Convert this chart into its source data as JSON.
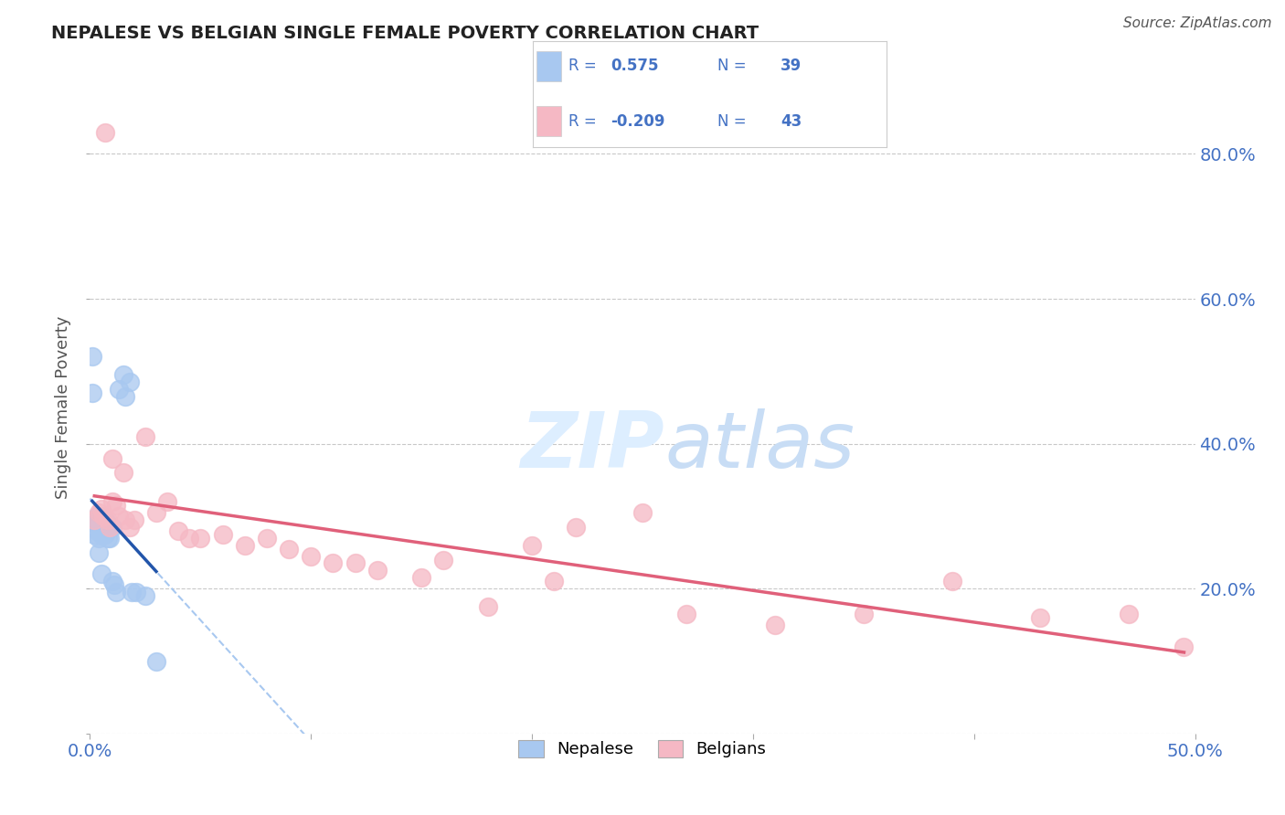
{
  "title": "NEPALESE VS BELGIAN SINGLE FEMALE POVERTY CORRELATION CHART",
  "source": "Source: ZipAtlas.com",
  "ylabel": "Single Female Poverty",
  "xlim": [
    0.0,
    0.5
  ],
  "ylim": [
    0.0,
    0.9
  ],
  "xtick_positions": [
    0.0,
    0.1,
    0.2,
    0.3,
    0.4,
    0.5
  ],
  "xtick_labels": [
    "0.0%",
    "",
    "",
    "",
    "",
    "50.0%"
  ],
  "right_ytick_positions": [
    0.2,
    0.4,
    0.6,
    0.8
  ],
  "right_ytick_labels": [
    "20.0%",
    "40.0%",
    "60.0%",
    "80.0%"
  ],
  "blue_R": 0.575,
  "blue_N": 39,
  "pink_R": -0.209,
  "pink_N": 43,
  "nepalese_color": "#a8c8f0",
  "belgian_color": "#f5b8c4",
  "blue_line_color": "#2255aa",
  "pink_line_color": "#e0607a",
  "blue_dashed_color": "#a8c8f0",
  "legend_text_color": "#4472c4",
  "watermark_color": "#ddeeff",
  "background_color": "#ffffff",
  "nepalese_x": [
    0.001,
    0.001,
    0.002,
    0.002,
    0.003,
    0.003,
    0.003,
    0.003,
    0.004,
    0.004,
    0.004,
    0.004,
    0.005,
    0.005,
    0.005,
    0.005,
    0.005,
    0.006,
    0.006,
    0.007,
    0.007,
    0.007,
    0.008,
    0.008,
    0.008,
    0.009,
    0.009,
    0.01,
    0.01,
    0.011,
    0.012,
    0.013,
    0.015,
    0.016,
    0.018,
    0.019,
    0.021,
    0.025,
    0.03
  ],
  "nepalese_y": [
    0.52,
    0.47,
    0.295,
    0.275,
    0.3,
    0.295,
    0.28,
    0.29,
    0.295,
    0.285,
    0.27,
    0.25,
    0.3,
    0.295,
    0.285,
    0.275,
    0.22,
    0.295,
    0.28,
    0.295,
    0.285,
    0.275,
    0.29,
    0.285,
    0.27,
    0.285,
    0.27,
    0.285,
    0.21,
    0.205,
    0.195,
    0.475,
    0.495,
    0.465,
    0.485,
    0.195,
    0.195,
    0.19,
    0.1
  ],
  "belgian_x": [
    0.002,
    0.004,
    0.005,
    0.006,
    0.007,
    0.008,
    0.009,
    0.01,
    0.01,
    0.012,
    0.013,
    0.015,
    0.016,
    0.018,
    0.02,
    0.025,
    0.03,
    0.035,
    0.04,
    0.045,
    0.05,
    0.06,
    0.07,
    0.08,
    0.09,
    0.1,
    0.11,
    0.12,
    0.13,
    0.15,
    0.16,
    0.18,
    0.2,
    0.21,
    0.22,
    0.25,
    0.27,
    0.31,
    0.35,
    0.39,
    0.43,
    0.47,
    0.495
  ],
  "belgian_y": [
    0.295,
    0.305,
    0.31,
    0.3,
    0.83,
    0.295,
    0.285,
    0.32,
    0.38,
    0.315,
    0.3,
    0.36,
    0.295,
    0.285,
    0.295,
    0.41,
    0.305,
    0.32,
    0.28,
    0.27,
    0.27,
    0.275,
    0.26,
    0.27,
    0.255,
    0.245,
    0.235,
    0.235,
    0.225,
    0.215,
    0.24,
    0.175,
    0.26,
    0.21,
    0.285,
    0.305,
    0.165,
    0.15,
    0.165,
    0.21,
    0.16,
    0.165,
    0.12
  ]
}
